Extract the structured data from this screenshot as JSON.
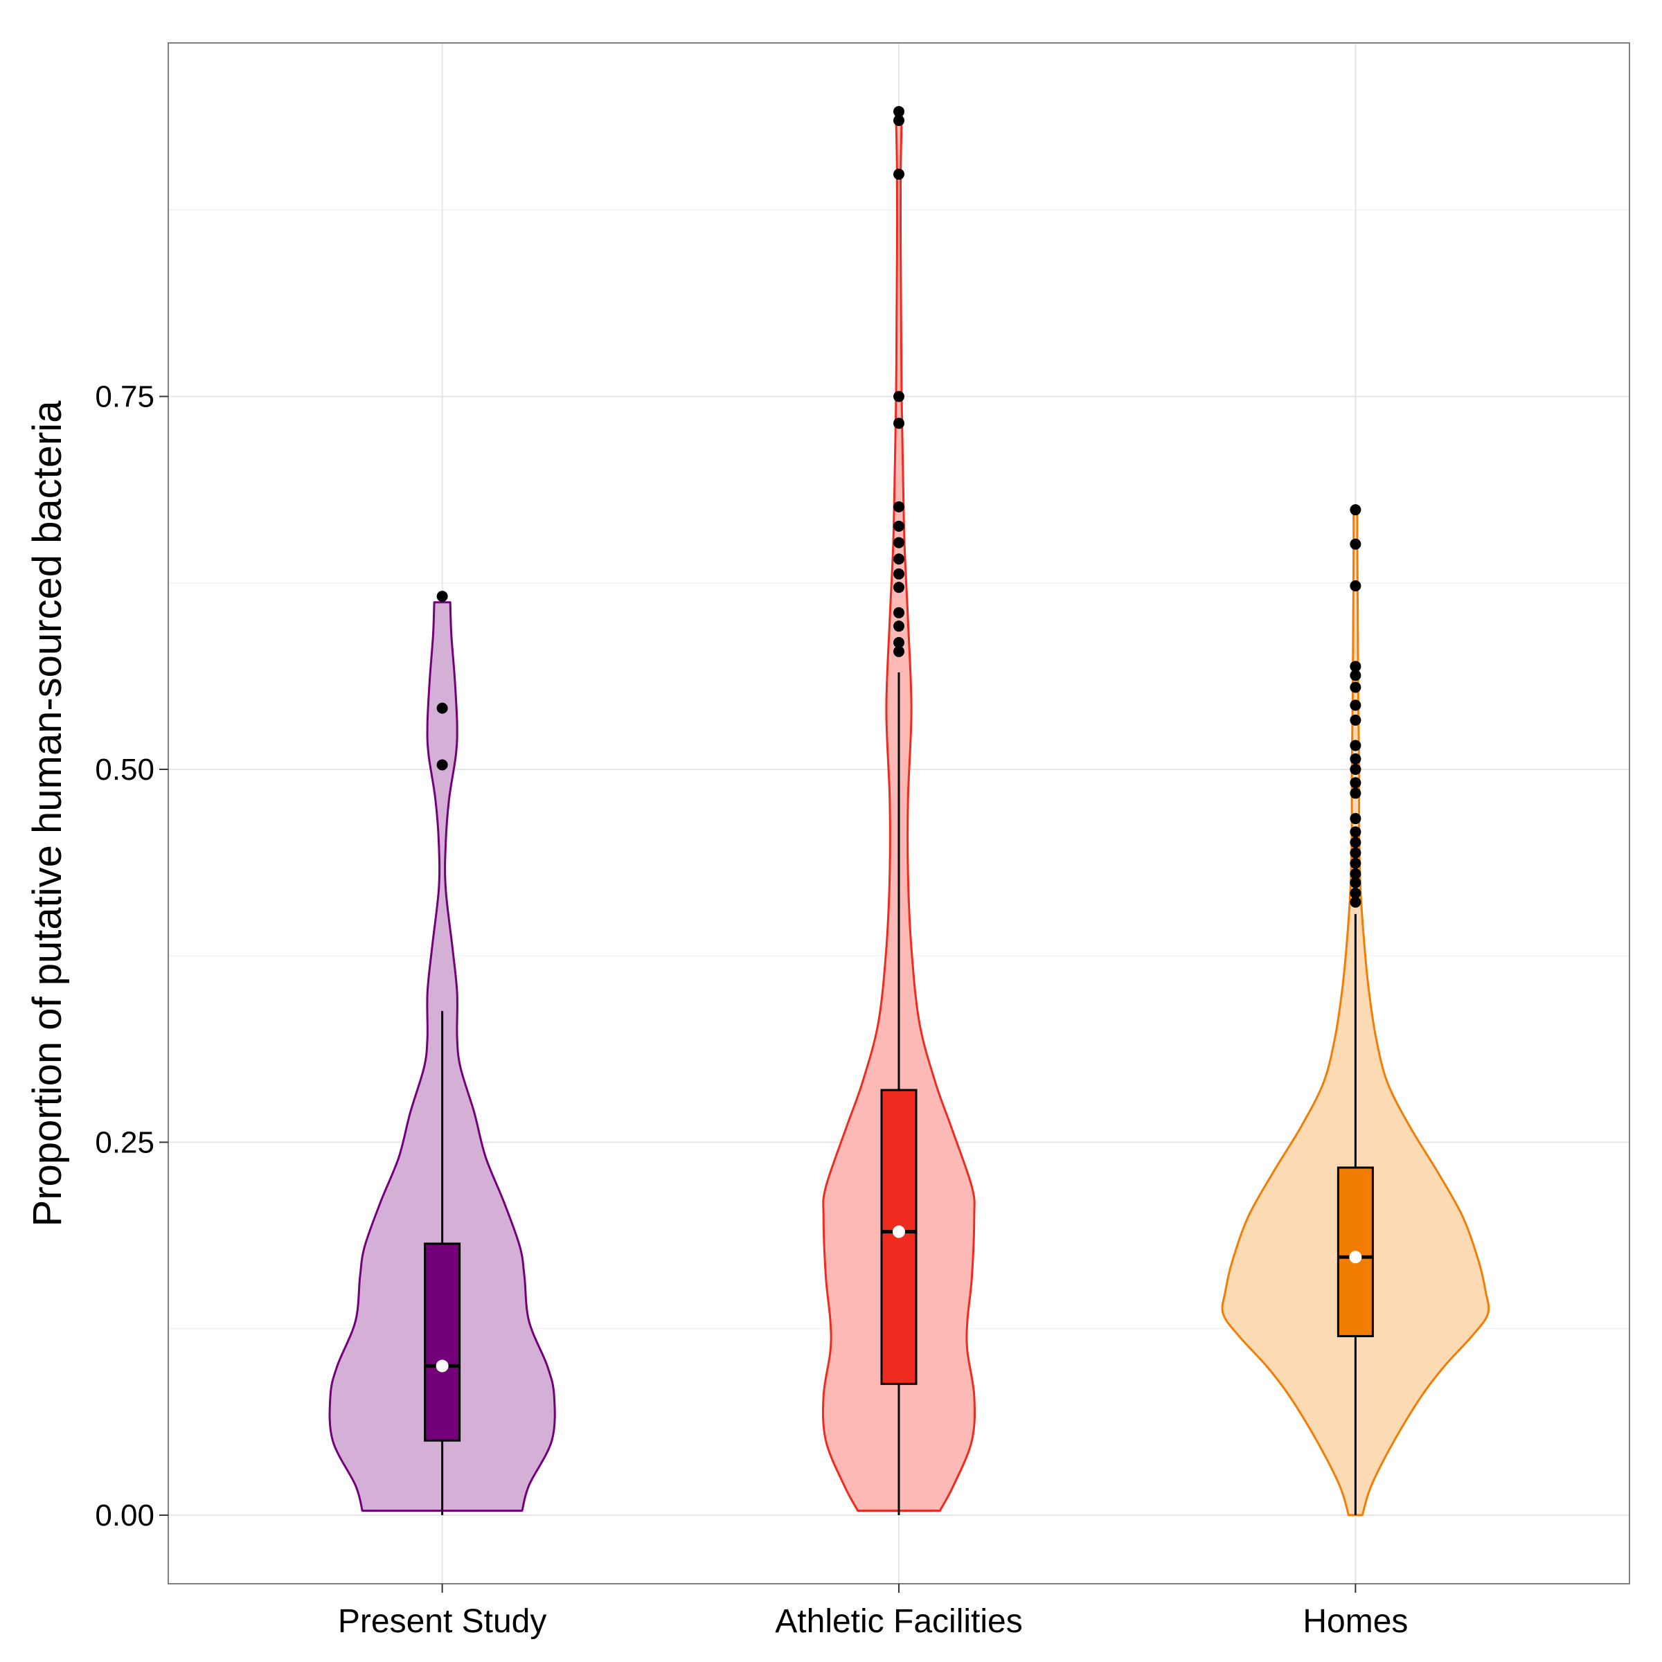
{
  "chart_data": {
    "type": "violin",
    "xlabel": "",
    "ylabel": "Proportion of putative human-sourced bacteria",
    "ylim": [
      -0.046,
      0.987
    ],
    "y_ticks": [
      {
        "value": 0.0,
        "label": "0.00"
      },
      {
        "value": 0.25,
        "label": "0.25"
      },
      {
        "value": 0.5,
        "label": "0.50"
      },
      {
        "value": 0.75,
        "label": "0.75"
      }
    ],
    "y_minor_gridlines": [
      0.125,
      0.375,
      0.625,
      0.875
    ],
    "grid": true,
    "legend": "none",
    "categories": [
      "Present Study",
      "Athletic Facilities",
      "Homes"
    ],
    "series": [
      {
        "category": "Present Study",
        "color": "#740079",
        "fill": "#d5b0d6",
        "box": {
          "q1": 0.05,
          "median": 0.1,
          "q3": 0.182,
          "whisker_low": 0.0,
          "whisker_high": 0.338,
          "mean": 0.1
        },
        "outliers": [
          0.503,
          0.541,
          0.616
        ],
        "violin": {
          "y": [
            0.003,
            0.02,
            0.05,
            0.08,
            0.1,
            0.13,
            0.16,
            0.18,
            0.21,
            0.24,
            0.27,
            0.3,
            0.32,
            0.35,
            0.38,
            0.42,
            0.45,
            0.48,
            0.51,
            0.53,
            0.56,
            0.59,
            0.612
          ],
          "width": [
            0.35,
            0.38,
            0.48,
            0.49,
            0.46,
            0.38,
            0.36,
            0.34,
            0.27,
            0.19,
            0.14,
            0.08,
            0.065,
            0.065,
            0.045,
            0.015,
            0.015,
            0.03,
            0.06,
            0.065,
            0.055,
            0.04,
            0.035
          ]
        }
      },
      {
        "category": "Athletic Facilities",
        "color": "#ef2b1f",
        "fill": "#fcb9b5",
        "box": {
          "q1": 0.088,
          "median": 0.19,
          "q3": 0.285,
          "whisker_low": 0.0,
          "whisker_high": 0.565,
          "mean": 0.19
        },
        "outliers": [
          0.579,
          0.585,
          0.596,
          0.605,
          0.622,
          0.631,
          0.641,
          0.652,
          0.663,
          0.676,
          0.732,
          0.75,
          0.899,
          0.935,
          0.941
        ],
        "violin": {
          "y": [
            0.003,
            0.02,
            0.05,
            0.08,
            0.11,
            0.13,
            0.16,
            0.2,
            0.22,
            0.26,
            0.29,
            0.33,
            0.38,
            0.43,
            0.48,
            0.54,
            0.6,
            0.65,
            0.7,
            0.75,
            0.8,
            0.85,
            0.9,
            0.94
          ],
          "width": [
            0.18,
            0.24,
            0.32,
            0.33,
            0.3,
            0.3,
            0.32,
            0.33,
            0.32,
            0.23,
            0.16,
            0.09,
            0.055,
            0.04,
            0.04,
            0.055,
            0.04,
            0.025,
            0.018,
            0.012,
            0.01,
            0.008,
            0.008,
            0.013
          ]
        }
      },
      {
        "category": "Homes",
        "color": "#f27d05",
        "fill": "#fcdab4",
        "box": {
          "q1": 0.12,
          "median": 0.173,
          "q3": 0.233,
          "whisker_low": 0.0,
          "whisker_high": 0.403,
          "mean": 0.173
        },
        "outliers": [
          0.411,
          0.417,
          0.424,
          0.43,
          0.437,
          0.444,
          0.451,
          0.458,
          0.467,
          0.484,
          0.491,
          0.5,
          0.507,
          0.516,
          0.533,
          0.543,
          0.555,
          0.563,
          0.569,
          0.623,
          0.651,
          0.674
        ],
        "violin": {
          "y": [
            0.0,
            0.02,
            0.05,
            0.08,
            0.1,
            0.12,
            0.135,
            0.15,
            0.17,
            0.2,
            0.23,
            0.26,
            0.29,
            0.32,
            0.35,
            0.38,
            0.42,
            0.46,
            0.5,
            0.55,
            0.6,
            0.65,
            0.674
          ],
          "width": [
            0.03,
            0.07,
            0.17,
            0.29,
            0.39,
            0.51,
            0.58,
            0.57,
            0.54,
            0.47,
            0.36,
            0.24,
            0.14,
            0.09,
            0.06,
            0.04,
            0.022,
            0.016,
            0.016,
            0.012,
            0.01,
            0.008,
            0.008
          ]
        }
      }
    ]
  }
}
